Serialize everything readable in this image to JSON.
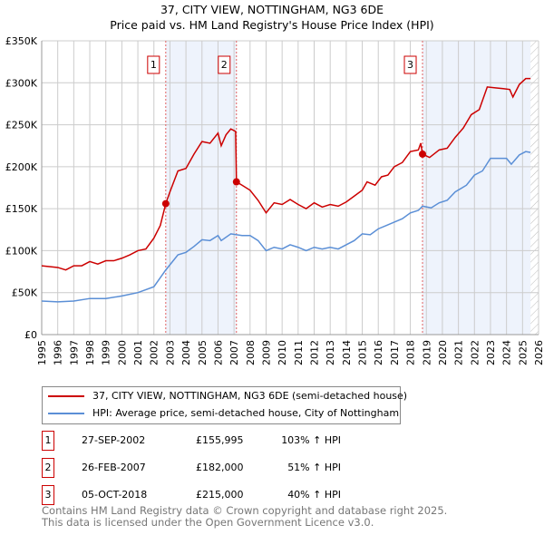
{
  "chart_data": {
    "type": "line",
    "title": "37, CITY VIEW, NOTTINGHAM, NG3 6DE",
    "subtitle": "Price paid vs. HM Land Registry's House Price Index (HPI)",
    "xlim": [
      1995,
      2026
    ],
    "ylim": [
      0,
      350000
    ],
    "y_ticks": [
      {
        "v": 0,
        "label": "£0"
      },
      {
        "v": 50000,
        "label": "£50K"
      },
      {
        "v": 100000,
        "label": "£100K"
      },
      {
        "v": 150000,
        "label": "£150K"
      },
      {
        "v": 200000,
        "label": "£200K"
      },
      {
        "v": 250000,
        "label": "£250K"
      },
      {
        "v": 300000,
        "label": "£300K"
      },
      {
        "v": 350000,
        "label": "£350K"
      }
    ],
    "x_ticks": [
      "1995",
      "1996",
      "1997",
      "1998",
      "1999",
      "2000",
      "2001",
      "2002",
      "2003",
      "2004",
      "2005",
      "2006",
      "2007",
      "2008",
      "2009",
      "2010",
      "2011",
      "2012",
      "2013",
      "2014",
      "2015",
      "2016",
      "2017",
      "2018",
      "2019",
      "2020",
      "2021",
      "2022",
      "2023",
      "2024",
      "2025",
      "2026"
    ],
    "grid": true,
    "colors": {
      "red": "#cc0000",
      "blue": "#5b8fd6",
      "shade": "#eef3fc"
    },
    "shaded": [
      [
        2002.74,
        2007.15
      ],
      [
        2018.76,
        2025.5
      ]
    ],
    "hatch_from": 2025.5,
    "series": [
      {
        "name": "37, CITY VIEW, NOTTINGHAM, NG3 6DE (semi-detached house)",
        "color": "#cc0000",
        "points": [
          [
            1995,
            82
          ],
          [
            1996,
            80
          ],
          [
            1996.5,
            77
          ],
          [
            1997,
            82
          ],
          [
            1997.5,
            82
          ],
          [
            1998,
            87
          ],
          [
            1998.5,
            84
          ],
          [
            1999,
            88
          ],
          [
            1999.5,
            88
          ],
          [
            2000,
            91
          ],
          [
            2000.5,
            95
          ],
          [
            2001,
            100
          ],
          [
            2001.5,
            102
          ],
          [
            2002,
            115
          ],
          [
            2002.4,
            130
          ],
          [
            2002.74,
            156
          ],
          [
            2003,
            170
          ],
          [
            2003.5,
            195
          ],
          [
            2004,
            198
          ],
          [
            2004.5,
            215
          ],
          [
            2005,
            230
          ],
          [
            2005.5,
            228
          ],
          [
            2006,
            240
          ],
          [
            2006.2,
            225
          ],
          [
            2006.5,
            238
          ],
          [
            2006.8,
            245
          ],
          [
            2007.1,
            242
          ],
          [
            2007.15,
            182
          ],
          [
            2007.5,
            178
          ],
          [
            2008,
            172
          ],
          [
            2008.5,
            160
          ],
          [
            2009,
            145
          ],
          [
            2009.5,
            157
          ],
          [
            2010,
            155
          ],
          [
            2010.5,
            161
          ],
          [
            2011,
            155
          ],
          [
            2011.5,
            150
          ],
          [
            2012,
            157
          ],
          [
            2012.5,
            152
          ],
          [
            2013,
            155
          ],
          [
            2013.5,
            153
          ],
          [
            2014,
            158
          ],
          [
            2014.5,
            165
          ],
          [
            2015,
            172
          ],
          [
            2015.3,
            182
          ],
          [
            2015.8,
            178
          ],
          [
            2016.2,
            188
          ],
          [
            2016.6,
            190
          ],
          [
            2017,
            200
          ],
          [
            2017.5,
            205
          ],
          [
            2018,
            218
          ],
          [
            2018.5,
            220
          ],
          [
            2018.65,
            228
          ],
          [
            2018.76,
            215
          ],
          [
            2019.2,
            211
          ],
          [
            2019.8,
            220
          ],
          [
            2020.3,
            222
          ],
          [
            2020.8,
            235
          ],
          [
            2021.3,
            246
          ],
          [
            2021.8,
            262
          ],
          [
            2022.3,
            268
          ],
          [
            2022.8,
            295
          ],
          [
            2023.3,
            294
          ],
          [
            2023.8,
            293
          ],
          [
            2024.2,
            292
          ],
          [
            2024.4,
            283
          ],
          [
            2024.8,
            298
          ],
          [
            2025.2,
            305
          ],
          [
            2025.5,
            305
          ]
        ]
      },
      {
        "name": "HPI: Average price, semi-detached house, City of Nottingham",
        "color": "#5b8fd6",
        "points": [
          [
            1995,
            40
          ],
          [
            1996,
            39
          ],
          [
            1997,
            40
          ],
          [
            1998,
            43
          ],
          [
            1999,
            43
          ],
          [
            2000,
            46
          ],
          [
            2001,
            50
          ],
          [
            2002,
            57
          ],
          [
            2002.74,
            77
          ],
          [
            2003.5,
            95
          ],
          [
            2004,
            98
          ],
          [
            2004.5,
            105
          ],
          [
            2005,
            113
          ],
          [
            2005.5,
            112
          ],
          [
            2006,
            118
          ],
          [
            2006.2,
            112
          ],
          [
            2006.8,
            120
          ],
          [
            2007.5,
            118
          ],
          [
            2008,
            118
          ],
          [
            2008.5,
            112
          ],
          [
            2009,
            100
          ],
          [
            2009.5,
            104
          ],
          [
            2010,
            102
          ],
          [
            2010.5,
            107
          ],
          [
            2011,
            104
          ],
          [
            2011.5,
            100
          ],
          [
            2012,
            104
          ],
          [
            2012.5,
            102
          ],
          [
            2013,
            104
          ],
          [
            2013.5,
            102
          ],
          [
            2014,
            107
          ],
          [
            2014.5,
            112
          ],
          [
            2015,
            120
          ],
          [
            2015.5,
            119
          ],
          [
            2016,
            126
          ],
          [
            2016.5,
            130
          ],
          [
            2017,
            134
          ],
          [
            2017.5,
            138
          ],
          [
            2018,
            145
          ],
          [
            2018.5,
            148
          ],
          [
            2018.76,
            153
          ],
          [
            2019.3,
            151
          ],
          [
            2019.8,
            157
          ],
          [
            2020.3,
            160
          ],
          [
            2020.8,
            170
          ],
          [
            2021.5,
            178
          ],
          [
            2022,
            190
          ],
          [
            2022.5,
            195
          ],
          [
            2023,
            210
          ],
          [
            2023.5,
            210
          ],
          [
            2024,
            210
          ],
          [
            2024.3,
            203
          ],
          [
            2024.8,
            214
          ],
          [
            2025.2,
            218
          ],
          [
            2025.5,
            217
          ]
        ]
      }
    ],
    "sales": [
      {
        "label": "1",
        "x": 2002.74,
        "y": 155995
      },
      {
        "label": "2",
        "x": 2007.15,
        "y": 182000
      },
      {
        "label": "3",
        "x": 2018.76,
        "y": 215000
      }
    ]
  },
  "legend": {
    "red": "37, CITY VIEW, NOTTINGHAM, NG3 6DE (semi-detached house)",
    "blue": "HPI: Average price, semi-detached house, City of Nottingham"
  },
  "transactions": [
    {
      "n": "1",
      "date": "27-SEP-2002",
      "price": "£155,995",
      "hpi": "103% ↑ HPI"
    },
    {
      "n": "2",
      "date": "26-FEB-2007",
      "price": "£182,000",
      "hpi": "51% ↑ HPI"
    },
    {
      "n": "3",
      "date": "05-OCT-2018",
      "price": "£215,000",
      "hpi": "40% ↑ HPI"
    }
  ],
  "footer": {
    "line1": "Contains HM Land Registry data © Crown copyright and database right 2025.",
    "line2": "This data is licensed under the Open Government Licence v3.0."
  }
}
